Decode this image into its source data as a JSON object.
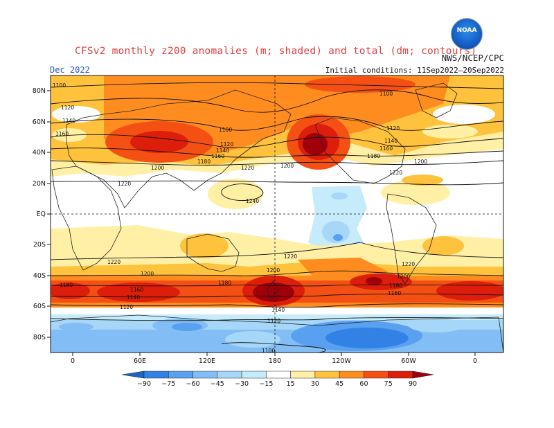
{
  "header": {
    "title": "CFSv2 monthly z200 anomalies (m; shaded) and total (dm; contours)",
    "agency": "NWS/NCEP/CPC",
    "month": "Dec 2022",
    "init_conditions": "Initial conditions: 11Sep2022–20Sep2022",
    "logo_text": "NOAA"
  },
  "map": {
    "lat_labels": [
      "80N",
      "60N",
      "40N",
      "20N",
      "EQ",
      "20S",
      "40S",
      "60S",
      "80S"
    ],
    "lon_labels": [
      "0",
      "60E",
      "120E",
      "180",
      "120W",
      "60W",
      "0"
    ],
    "contour_labels": [
      "1100",
      "1120",
      "1140",
      "1160",
      "1180",
      "1200",
      "1220",
      "1240"
    ]
  },
  "colorbar": {
    "ticks": [
      "−90",
      "−75",
      "−60",
      "−45",
      "−30",
      "−15",
      "15",
      "30",
      "45",
      "60",
      "75",
      "90"
    ],
    "colors": [
      "#1e64c8",
      "#3282e6",
      "#5aa0f0",
      "#82bef5",
      "#a6d6f8",
      "#c6ecfb",
      "#ffffff",
      "#fff0a6",
      "#ffc23c",
      "#ff8c1e",
      "#f55014",
      "#dc1e0a",
      "#a0000a"
    ]
  }
}
